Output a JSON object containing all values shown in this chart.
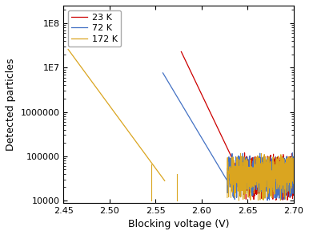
{
  "title": "",
  "xlabel": "Blocking voltage (V)",
  "ylabel": "Detected particles",
  "xlim_left": 2.7,
  "xlim_right": 2.45,
  "ylim": [
    9000,
    250000000.0
  ],
  "legend": [
    "23 K",
    "72 K",
    "172 K"
  ],
  "colors": [
    "#cc0000",
    "#4472c4",
    "#daa520"
  ],
  "background_color": "#ffffff",
  "xticks": [
    2.7,
    2.65,
    2.6,
    2.55,
    2.5,
    2.45
  ],
  "yticks": [
    10000,
    100000,
    1000000,
    10000000,
    100000000
  ],
  "red_noise_range": [
    2.7,
    2.645
  ],
  "red_rise_start": 2.645,
  "red_rise_end": 2.578,
  "blue_noise_range": [
    2.7,
    2.628
  ],
  "blue_rise_start": 2.628,
  "blue_rise_end": 2.558,
  "yellow_noise_range": [
    2.7,
    2.628
  ],
  "yellow_rise_start": 2.56,
  "yellow_rise_end": 2.455,
  "yellow_spike1_x": 2.573,
  "yellow_spike1_y": 40000,
  "yellow_spike2_x": 2.545,
  "yellow_spike2_y": 65000
}
